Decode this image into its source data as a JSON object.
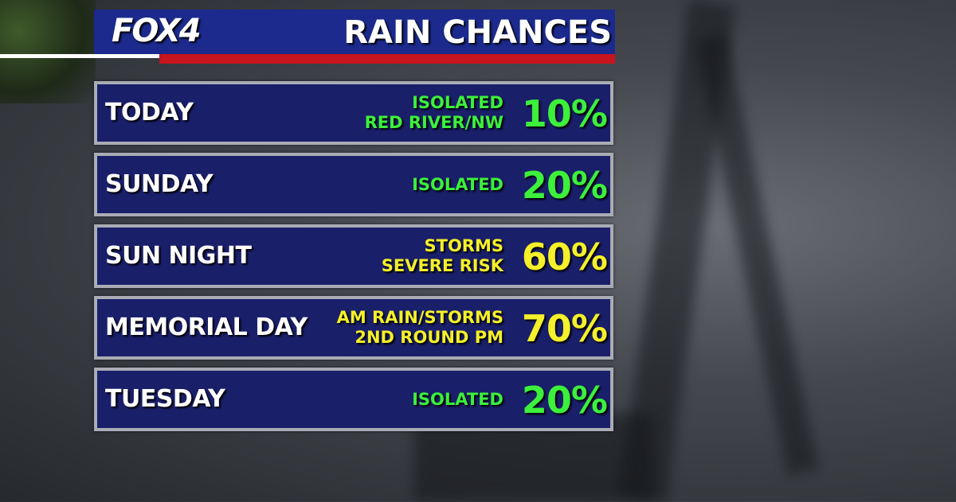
{
  "header": {
    "logo": "FOX4",
    "title": "RAIN CHANCES"
  },
  "rows": [
    {
      "day": "TODAY",
      "detail": [
        "ISOLATED",
        "RED RIVER/NW"
      ],
      "chance": "10%",
      "color": "#3cf03c"
    },
    {
      "day": "SUNDAY",
      "detail": [
        "ISOLATED"
      ],
      "chance": "20%",
      "color": "#3cf03c"
    },
    {
      "day": "SUN NIGHT",
      "detail": [
        "STORMS",
        "SEVERE RISK"
      ],
      "chance": "60%",
      "color": "#f4f02a"
    },
    {
      "day": "MEMORIAL DAY",
      "detail": [
        "AM RAIN/STORMS",
        "2ND ROUND PM"
      ],
      "chance": "70%",
      "color": "#f4f02a"
    },
    {
      "day": "TUESDAY",
      "detail": [
        "ISOLATED"
      ],
      "chance": "20%",
      "color": "#3cf03c"
    }
  ]
}
